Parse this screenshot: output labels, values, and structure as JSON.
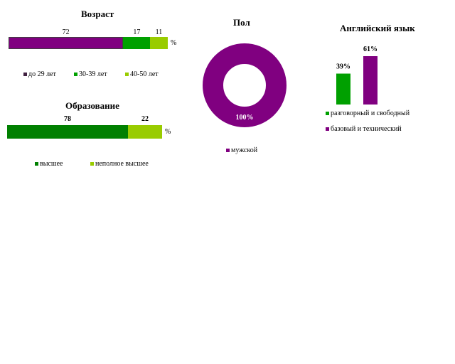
{
  "colors": {
    "purple": "#800080",
    "dark_green": "#008000",
    "green": "#00a000",
    "light_green": "#99cc00",
    "white": "#ffffff"
  },
  "chart_data": [
    {
      "type": "bar",
      "orientation": "horizontal-stacked",
      "title": "Возраст",
      "unit": "%",
      "series": [
        {
          "name": "до 29 лет",
          "value": 72,
          "color": "#800080"
        },
        {
          "name": "30-39 лет",
          "value": 17,
          "color": "#00a000"
        },
        {
          "name": "40-50 лет",
          "value": 11,
          "color": "#99cc00"
        }
      ]
    },
    {
      "type": "bar",
      "orientation": "horizontal-stacked",
      "title": "Образование",
      "unit": "%",
      "series": [
        {
          "name": "высшее",
          "value": 78,
          "color": "#008000"
        },
        {
          "name": "неполное высшее",
          "value": 22,
          "color": "#99cc00"
        }
      ]
    },
    {
      "type": "pie",
      "style": "donut",
      "title": "Пол",
      "slices": [
        {
          "name": "мужской",
          "value": 100,
          "label": "100%",
          "color": "#800080"
        }
      ]
    },
    {
      "type": "bar",
      "title": "Английский язык",
      "series": [
        {
          "name": "разговорный и свободный",
          "value": 39,
          "label": "39%",
          "color": "#00a000"
        },
        {
          "name": "базовый и технический",
          "value": 61,
          "label": "61%",
          "color": "#800080"
        }
      ]
    }
  ]
}
